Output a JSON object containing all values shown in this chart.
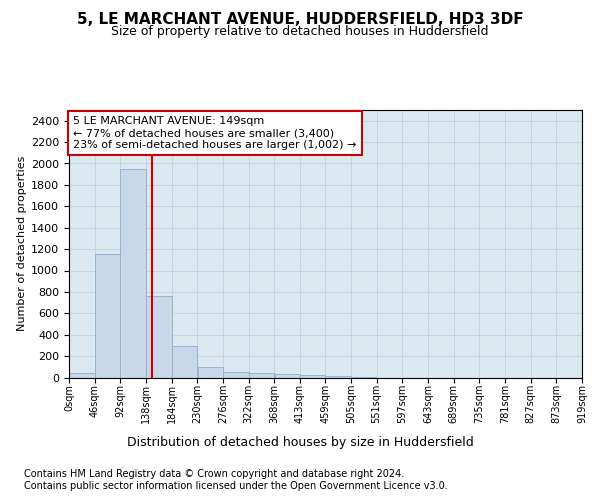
{
  "title": "5, LE MARCHANT AVENUE, HUDDERSFIELD, HD3 3DF",
  "subtitle": "Size of property relative to detached houses in Huddersfield",
  "xlabel": "Distribution of detached houses by size in Huddersfield",
  "ylabel": "Number of detached properties",
  "bin_edges": [
    0,
    46,
    92,
    138,
    184,
    230,
    276,
    322,
    368,
    413,
    459,
    505,
    551,
    597,
    643,
    689,
    735,
    781,
    827,
    873,
    919
  ],
  "bar_heights": [
    40,
    1150,
    1950,
    760,
    295,
    100,
    50,
    40,
    30,
    20,
    15,
    3,
    0,
    0,
    0,
    0,
    0,
    0,
    0,
    0
  ],
  "bar_color": "#c8d8ea",
  "bar_edge_color": "#8ab0cc",
  "red_line_x": 149,
  "annotation_line1": "5 LE MARCHANT AVENUE: 149sqm",
  "annotation_line2": "← 77% of detached houses are smaller (3,400)",
  "annotation_line3": "23% of semi-detached houses are larger (1,002) →",
  "grid_color": "#c8d4e0",
  "plot_bg_color": "#dce8f0",
  "fig_bg_color": "#ffffff",
  "ylim": [
    0,
    2500
  ],
  "yticks": [
    0,
    200,
    400,
    600,
    800,
    1000,
    1200,
    1400,
    1600,
    1800,
    2000,
    2200,
    2400
  ],
  "tick_labels": [
    "0sqm",
    "46sqm",
    "92sqm",
    "138sqm",
    "184sqm",
    "230sqm",
    "276sqm",
    "322sqm",
    "368sqm",
    "413sqm",
    "459sqm",
    "505sqm",
    "551sqm",
    "597sqm",
    "643sqm",
    "689sqm",
    "735sqm",
    "781sqm",
    "827sqm",
    "873sqm",
    "919sqm"
  ],
  "footer_text1": "Contains HM Land Registry data © Crown copyright and database right 2024.",
  "footer_text2": "Contains public sector information licensed under the Open Government Licence v3.0.",
  "title_fontsize": 11,
  "subtitle_fontsize": 9,
  "ylabel_fontsize": 8,
  "xlabel_fontsize": 9,
  "ytick_fontsize": 8,
  "xtick_fontsize": 7,
  "annotation_fontsize": 8,
  "footer_fontsize": 7
}
